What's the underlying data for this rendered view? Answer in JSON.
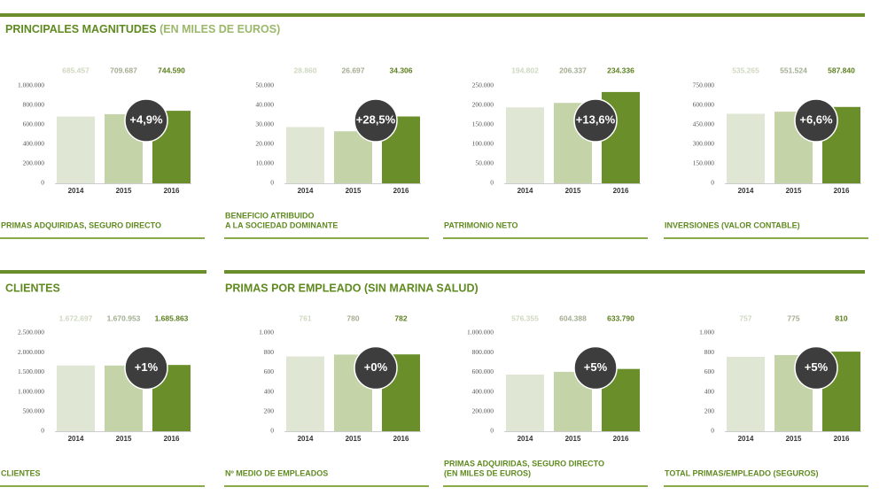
{
  "headings": [
    "PRINCIPALES MAGNITUDES",
    "(EN MILES DE EUROS)",
    "CLIENTES",
    "PRIMAS POR EMPLEADO (SIN MARINA SALUD)"
  ],
  "chart_data": [
    {
      "type": "bar",
      "title": [
        "PRIMAS ADQUIRIDAS, SEGURO DIRECTO"
      ],
      "categories": [
        "2014",
        "2015",
        "2016"
      ],
      "values": [
        685457,
        709687,
        744590
      ],
      "value_labels": [
        "685.457",
        "709.687",
        "744.590"
      ],
      "colors": [
        "#dfe6d3",
        "#c5d3a9",
        "#6a8f2a"
      ],
      "annotation": "+4,9%",
      "ylim": [
        0,
        1000000
      ],
      "yticks": [
        0,
        {
          "value": 200000,
          "label": "200.000"
        },
        {
          "value": 400000,
          "label": "400.000"
        },
        {
          "value": 600000,
          "label": "600.000"
        },
        {
          "value": 800000,
          "label": "800.000"
        },
        {
          "value": 1000000,
          "label": "1.000.000"
        }
      ]
    },
    {
      "type": "bar",
      "title": [
        "BENEFICIO ATRIBUIDO",
        "A LA SOCIEDAD DOMINANTE"
      ],
      "categories": [
        "2014",
        "2015",
        "2016"
      ],
      "values": [
        28860,
        26697,
        34306
      ],
      "value_labels": [
        "28.860",
        "26.697",
        "34.306"
      ],
      "colors": [
        "#dfe6d3",
        "#c5d3a9",
        "#6a8f2a"
      ],
      "annotation": "+28,5%",
      "ylim": [
        0,
        50000
      ],
      "yticks": [
        0,
        {
          "value": 10000,
          "label": "10.000"
        },
        {
          "value": 20000,
          "label": "20.000"
        },
        {
          "value": 30000,
          "label": "30.000"
        },
        {
          "value": 40000,
          "label": "40.000"
        },
        {
          "value": 50000,
          "label": "50.000"
        }
      ]
    },
    {
      "type": "bar",
      "title": [
        "PATRIMONIO NETO"
      ],
      "categories": [
        "2014",
        "2015",
        "2016"
      ],
      "values": [
        194802,
        206337,
        234336
      ],
      "value_labels": [
        "194.802",
        "206.337",
        "234.336"
      ],
      "colors": [
        "#dfe6d3",
        "#c5d3a9",
        "#6a8f2a"
      ],
      "annotation": "+13,6%",
      "ylim": [
        0,
        250000
      ],
      "yticks": [
        0,
        {
          "value": 50000,
          "label": "50.000"
        },
        {
          "value": 100000,
          "label": "100.000"
        },
        {
          "value": 150000,
          "label": "150.000"
        },
        {
          "value": 200000,
          "label": "200.000"
        },
        {
          "value": 250000,
          "label": "250.000"
        }
      ]
    },
    {
      "type": "bar",
      "title": [
        "INVERSIONES (VALOR CONTABLE)"
      ],
      "categories": [
        "2014",
        "2015",
        "2016"
      ],
      "values": [
        535265,
        551524,
        587840
      ],
      "value_labels": [
        "535.265",
        "551.524",
        "587.840"
      ],
      "colors": [
        "#dfe6d3",
        "#c5d3a9",
        "#6a8f2a"
      ],
      "annotation": "+6,6%",
      "ylim": [
        0,
        750000
      ],
      "yticks": [
        0,
        {
          "value": 150000,
          "label": "150.000"
        },
        {
          "value": 300000,
          "label": "300.000"
        },
        {
          "value": 450000,
          "label": "450.000"
        },
        {
          "value": 600000,
          "label": "600.000"
        },
        {
          "value": 750000,
          "label": "750.000"
        }
      ]
    },
    {
      "type": "bar",
      "title": [
        "CLIENTES"
      ],
      "categories": [
        "2014",
        "2015",
        "2016"
      ],
      "values": [
        1672697,
        1670953,
        1685863
      ],
      "value_labels": [
        "1.672.697",
        "1.670.953",
        "1.685.863"
      ],
      "colors": [
        "#dfe6d3",
        "#c5d3a9",
        "#6a8f2a"
      ],
      "annotation": "+1%",
      "ylim": [
        0,
        2500000
      ],
      "yticks": [
        0,
        {
          "value": 500000,
          "label": "500.000"
        },
        {
          "value": 1000000,
          "label": "1.000.000"
        },
        {
          "value": 1500000,
          "label": "1.500.000"
        },
        {
          "value": 2000000,
          "label": "2.000.000"
        },
        {
          "value": 2500000,
          "label": "2.500.000"
        }
      ]
    },
    {
      "type": "bar",
      "title": [
        "Nº MEDIO DE EMPLEADOS"
      ],
      "categories": [
        "2014",
        "2015",
        "2016"
      ],
      "values": [
        761,
        780,
        782
      ],
      "colors": [
        "#dfe6d3",
        "#c5d3a9",
        "#6a8f2a"
      ],
      "annotation": "+0%",
      "ylim": [
        0,
        1000
      ],
      "yticks": [
        0,
        200,
        400,
        600,
        800,
        {
          "value": 1000,
          "label": "1.000"
        }
      ]
    },
    {
      "type": "bar",
      "title": [
        "PRIMAS ADQUIRIDAS, SEGURO DIRECTO",
        "(EN MILES DE EUROS)"
      ],
      "categories": [
        "2014",
        "2015",
        "2016"
      ],
      "values": [
        576355,
        604388,
        633790
      ],
      "value_labels": [
        "576.355",
        "604.388",
        "633.790"
      ],
      "colors": [
        "#dfe6d3",
        "#c5d3a9",
        "#6a8f2a"
      ],
      "annotation": "+5%",
      "ylim": [
        0,
        1000000
      ],
      "yticks": [
        0,
        {
          "value": 200000,
          "label": "200.000"
        },
        {
          "value": 400000,
          "label": "400.000"
        },
        {
          "value": 600000,
          "label": "600.000"
        },
        {
          "value": 800000,
          "label": "800.000"
        },
        {
          "value": 1000000,
          "label": "1.000.000"
        }
      ]
    },
    {
      "type": "bar",
      "title": [
        "TOTAL PRIMAS/EMPLEADO (SEGUROS)"
      ],
      "categories": [
        "2014",
        "2015",
        "2016"
      ],
      "values": [
        757,
        775,
        810
      ],
      "colors": [
        "#dfe6d3",
        "#c5d3a9",
        "#6a8f2a"
      ],
      "annotation": "+5%",
      "ylim": [
        0,
        1000
      ],
      "yticks": [
        0,
        200,
        400,
        600,
        800,
        {
          "value": 1000,
          "label": "1.000"
        }
      ]
    }
  ]
}
